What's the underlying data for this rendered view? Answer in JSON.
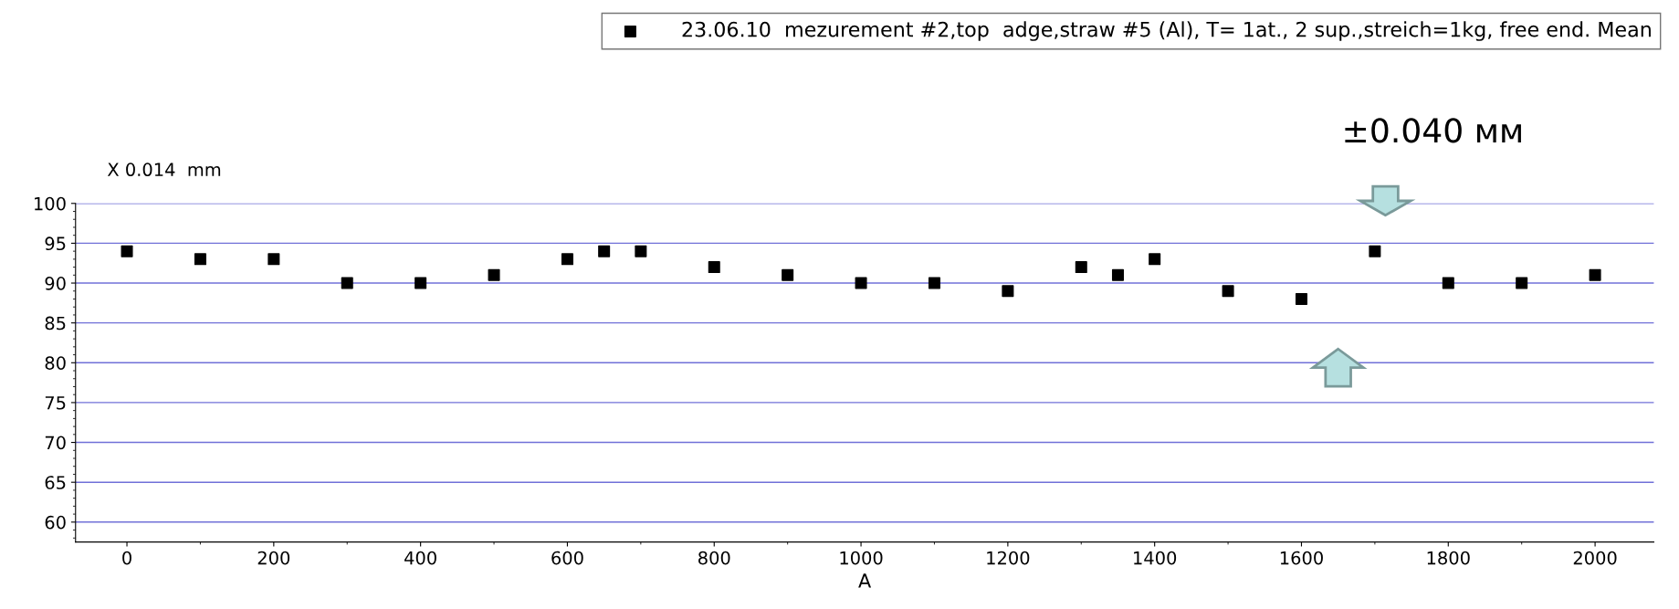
{
  "chart_data": {
    "type": "scatter",
    "ylabel": "X 0.014  mm",
    "xlabel": "A",
    "x": [
      0,
      100,
      200,
      300,
      400,
      500,
      600,
      650,
      700,
      800,
      900,
      1000,
      1100,
      1200,
      1300,
      1350,
      1400,
      1500,
      1600,
      1700,
      1800,
      1900,
      2000
    ],
    "series": [
      {
        "name": "23.06.10  mezurement #2,top  adge,straw #5 (Al), T= 1at., 2 sup.,streich=1kg, free end. Mean",
        "color": "#000000",
        "values": [
          94,
          93,
          93,
          90,
          90,
          91,
          93,
          94,
          94,
          92,
          91,
          90,
          90,
          89,
          92,
          91,
          93,
          89,
          88,
          94,
          90,
          90,
          91
        ]
      }
    ],
    "annotations": [
      "±0.040 мм"
    ],
    "xlim": [
      -70,
      2080
    ],
    "xticks": [
      0,
      200,
      400,
      600,
      800,
      1000,
      1200,
      1400,
      1600,
      1800,
      2000
    ],
    "ylim": [
      57.5,
      100
    ],
    "yticks": [
      60,
      65,
      70,
      75,
      80,
      85,
      90,
      95,
      100
    ],
    "grid": "y",
    "legend": "top right",
    "marker": "square"
  }
}
